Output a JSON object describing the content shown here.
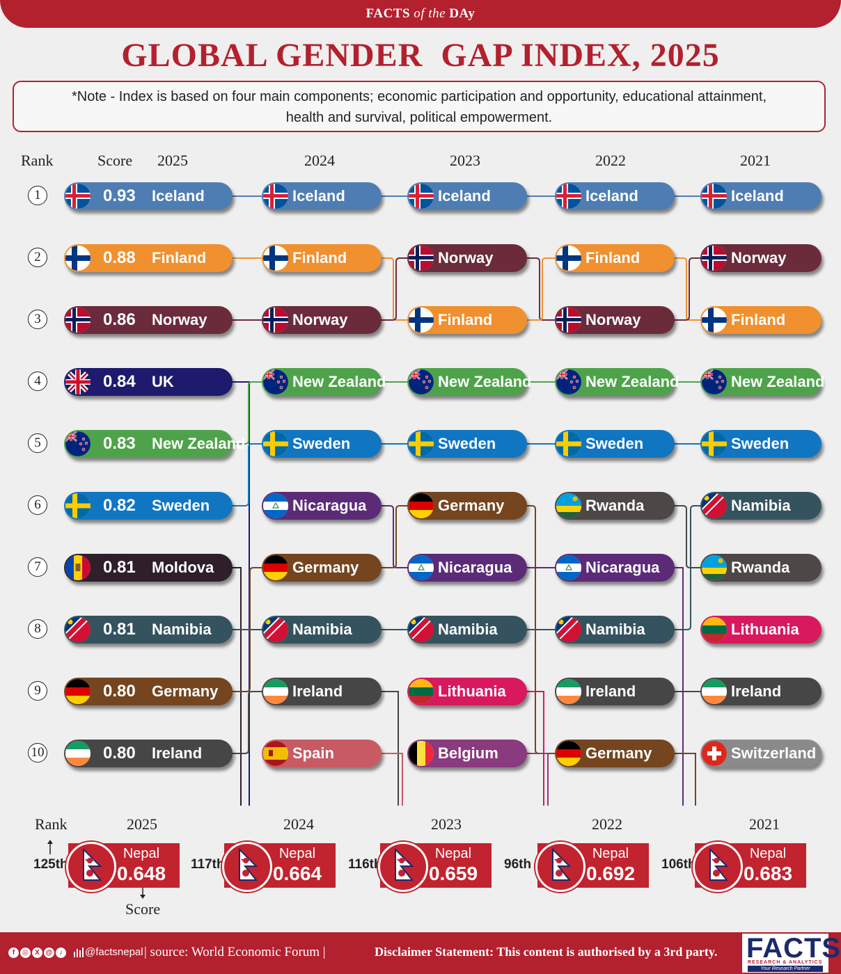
{
  "header": {
    "banner_facts": "FACTS",
    "banner_of_the": "of the",
    "banner_day": "DAy",
    "title": "GLOBAL GENDER  GAP INDEX, 2025",
    "note_line1": "*Note - Index is based on four main components; economic participation and opportunity, educational attainment,",
    "note_line2": "health and survival, political empowerment."
  },
  "columns": {
    "rank": "Rank",
    "score": "Score",
    "years": [
      "2025",
      "2024",
      "2023",
      "2022",
      "2021"
    ]
  },
  "colors": {
    "Iceland": "#4e7db3",
    "Finland": "#f0902f",
    "Norway": "#6b2b3b",
    "UK": "#1e1a6e",
    "New Zealand": "#4ea34a",
    "Sweden": "#1176c2",
    "Moldova": "#2e1f2b",
    "Namibia": "#34535f",
    "Germany": "#74451f",
    "Ireland": "#464646",
    "Nicaragua": "#5b2b78",
    "Spain": "#c85a63",
    "Lithuania": "#d8195d",
    "Belgium": "#8a3a7e",
    "Rwanda": "#4e4747",
    "Switzerland": "#8a8a8a",
    "accent_red": "#b3202e"
  },
  "chart_data": {
    "type": "table",
    "title": "GLOBAL GENDER  GAP INDEX, 2025",
    "ranks": [
      "1",
      "2",
      "3",
      "4",
      "5",
      "6",
      "7",
      "8",
      "9",
      "10"
    ],
    "rankings": {
      "2025": [
        {
          "country": "Iceland",
          "score": "0.93"
        },
        {
          "country": "Finland",
          "score": "0.88"
        },
        {
          "country": "Norway",
          "score": "0.86"
        },
        {
          "country": "UK",
          "score": "0.84"
        },
        {
          "country": "New Zealand",
          "score": "0.83"
        },
        {
          "country": "Sweden",
          "score": "0.82"
        },
        {
          "country": "Moldova",
          "score": "0.81"
        },
        {
          "country": "Namibia",
          "score": "0.81"
        },
        {
          "country": "Germany",
          "score": "0.80"
        },
        {
          "country": "Ireland",
          "score": "0.80"
        }
      ],
      "2024": [
        "Iceland",
        "Finland",
        "Norway",
        "New Zealand",
        "Sweden",
        "Nicaragua",
        "Germany",
        "Namibia",
        "Ireland",
        "Spain"
      ],
      "2023": [
        "Iceland",
        "Norway",
        "Finland",
        "New Zealand",
        "Sweden",
        "Germany",
        "Nicaragua",
        "Namibia",
        "Lithuania",
        "Belgium"
      ],
      "2022": [
        "Iceland",
        "Finland",
        "Norway",
        "New Zealand",
        "Sweden",
        "Rwanda",
        "Nicaragua",
        "Namibia",
        "Ireland",
        "Germany"
      ],
      "2021": [
        "Iceland",
        "Norway",
        "Finland",
        "New Zealand",
        "Sweden",
        "Namibia",
        "Rwanda",
        "Lithuania",
        "Ireland",
        "Switzerland"
      ]
    },
    "nepal": [
      {
        "year": "2025",
        "rank": "125th",
        "country": "Nepal",
        "score": "0.648"
      },
      {
        "year": "2024",
        "rank": "117th",
        "country": "Nepal",
        "score": "0.664"
      },
      {
        "year": "2023",
        "rank": "116th",
        "country": "Nepal",
        "score": "0.659"
      },
      {
        "year": "2022",
        "rank": "96th",
        "country": "Nepal",
        "score": "0.692"
      },
      {
        "year": "2021",
        "rank": "106th",
        "country": "Nepal",
        "score": "0.683"
      }
    ],
    "nepal_legend": {
      "rank": "Rank",
      "score": "Score"
    }
  },
  "footer": {
    "handle": "@factsnepal",
    "source": "| source:  World Economic Forum |",
    "disclaimer": "Disclaimer Statement: This content is authorised by a 3rd party.",
    "social_icons": [
      "facebook-icon",
      "instagram-icon",
      "x-icon",
      "threads-icon",
      "tiktok-icon"
    ],
    "logo_text": "FACTS",
    "logo_sub": "RESEARCH & ANALYTICS",
    "logo_tag": "Your Research Partner"
  }
}
